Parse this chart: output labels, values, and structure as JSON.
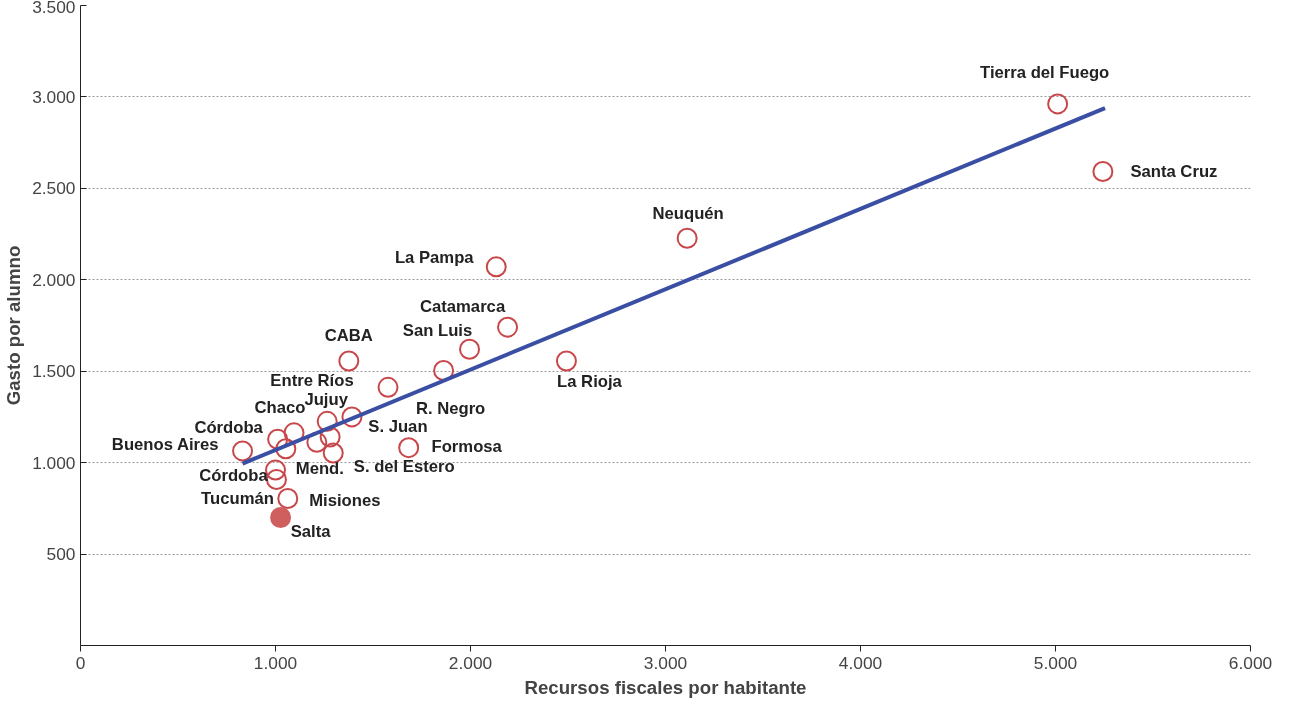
{
  "chart_data": {
    "type": "scatter",
    "xlabel": "Recursos fiscales por habitante",
    "ylabel": "Gasto por alumno",
    "xlim": [
      0,
      6000
    ],
    "ylim": [
      0,
      3500
    ],
    "xticks": [
      {
        "value": 0,
        "label": "0"
      },
      {
        "value": 1000,
        "label": "1.000"
      },
      {
        "value": 2000,
        "label": "2.000"
      },
      {
        "value": 3000,
        "label": "3.000"
      },
      {
        "value": 4000,
        "label": "4.000"
      },
      {
        "value": 5000,
        "label": "5.000"
      },
      {
        "value": 6000,
        "label": "6.000"
      }
    ],
    "yticks": [
      {
        "value": 500,
        "label": "500"
      },
      {
        "value": 1000,
        "label": "1.000"
      },
      {
        "value": 1500,
        "label": "1.500"
      },
      {
        "value": 2000,
        "label": "2.000"
      },
      {
        "value": 2500,
        "label": "2.500"
      },
      {
        "value": 3000,
        "label": "3.000"
      },
      {
        "value": 3500,
        "label": "3.500"
      }
    ],
    "grid": "y",
    "series": [
      {
        "color": "#c8474a",
        "x": [
          831,
          1011,
          1095,
          1053,
          1265,
          1392,
          1212,
          1280,
          1296,
          1376,
          1577,
          1862,
          1995,
          2190,
          1683,
          1000,
          1005,
          1063,
          2132,
          2492,
          3111,
          5011,
          5243
        ],
        "values": [
          1064,
          1128,
          1163,
          1076,
          1226,
          1250,
          1111,
          1140,
          1053,
          1556,
          1412,
          1504,
          1620,
          1741,
          1082,
          960,
          908,
          804,
          2071,
          1556,
          2227,
          2962,
          2592
        ],
        "value_labels": [
          "Buenos Aires",
          "Córdoba",
          "Chaco",
          "Mend.",
          "Jujuy",
          "S. Juan",
          null,
          null,
          "S. del Estero",
          "CABA",
          "Entre Ríos",
          "R. Negro",
          "San Luis",
          "Catamarca",
          "Formosa",
          "Córdoba",
          "Tucumán",
          "Misiones",
          "La Pampa",
          "La Rioja",
          "Neuquén",
          "Tierra del Fuego",
          "Santa Cruz"
        ]
      },
      {
        "color": "#cf5f5f",
        "x": [
          1026
        ],
        "values": [
          700
        ],
        "value_labels": [
          "Salta"
        ]
      },
      {
        "type": "line",
        "color": "#3a4fa3",
        "x": [
          831,
          5254
        ],
        "values": [
          995,
          2939
        ]
      }
    ]
  }
}
